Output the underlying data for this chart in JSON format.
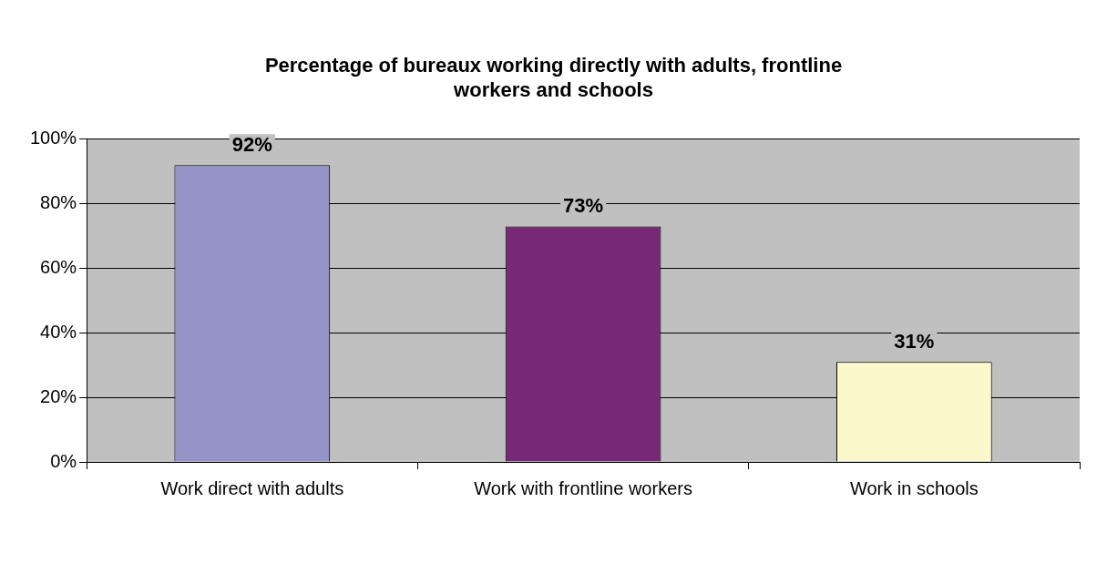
{
  "chart_data": {
    "type": "bar",
    "title": "Percentage of bureaux working directly with adults, frontline workers and schools",
    "categories": [
      "Work direct with adults",
      "Work with frontline workers",
      "Work in schools"
    ],
    "values": [
      92,
      73,
      31
    ],
    "colors": [
      "#9494c8",
      "#772977",
      "#fbf8cc"
    ],
    "value_labels": [
      "92%",
      "73%",
      "31%"
    ],
    "ylim": [
      0,
      100
    ],
    "yticks": [
      {
        "value": 0,
        "label": "0%"
      },
      {
        "value": 20,
        "label": "20%"
      },
      {
        "value": 40,
        "label": "40%"
      },
      {
        "value": 60,
        "label": "60%"
      },
      {
        "value": 80,
        "label": "80%"
      },
      {
        "value": 100,
        "label": "100%"
      }
    ],
    "grid": "y",
    "legend": false
  }
}
